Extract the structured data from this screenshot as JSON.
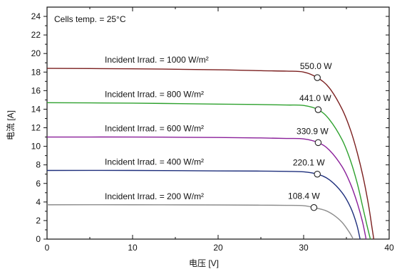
{
  "chart_data": {
    "type": "line",
    "annotation": "Cells temp. = 25°C",
    "xlabel": "电压 [V]",
    "ylabel": "电流 [A]",
    "xlim": [
      0,
      40
    ],
    "ylim": [
      0,
      25
    ],
    "x_ticks": [
      0,
      10,
      20,
      30,
      40
    ],
    "y_ticks": [
      0,
      2,
      4,
      6,
      8,
      10,
      12,
      14,
      16,
      18,
      20,
      22,
      24
    ],
    "x_ticks_labels": [
      "0",
      "10",
      "20",
      "30",
      "40"
    ],
    "y_ticks_labels": [
      "0",
      "2",
      "4",
      "6",
      "8",
      "10",
      "12",
      "14",
      "16",
      "18",
      "20",
      "22",
      "24"
    ],
    "grid": false,
    "series": [
      {
        "name": "Incident Irrad. = 1000 W/m²",
        "color": "#7b1f1f",
        "x": [
          0,
          10,
          20,
          25,
          28,
          30,
          31.6,
          33,
          34.5,
          35.5,
          36.3,
          37,
          37.6,
          38.0,
          38.2
        ],
        "y": [
          18.4,
          18.35,
          18.25,
          18.15,
          18.1,
          18.0,
          17.4,
          16.3,
          14.0,
          11.7,
          9.2,
          6.5,
          3.6,
          1.2,
          0
        ],
        "mpp": {
          "x": 31.6,
          "y": 17.4,
          "label": "550.0 W"
        }
      },
      {
        "name": "Incident Irrad. = 800 W/m²",
        "color": "#2ea12e",
        "x": [
          0,
          10,
          20,
          25,
          28,
          30,
          31.7,
          33,
          34.5,
          35.5,
          36.3,
          36.9,
          37.4,
          37.8
        ],
        "y": [
          14.7,
          14.65,
          14.55,
          14.5,
          14.45,
          14.4,
          13.95,
          12.9,
          10.7,
          8.4,
          5.9,
          3.5,
          1.5,
          0
        ],
        "mpp": {
          "x": 31.7,
          "y": 13.95,
          "label": "441.0  W"
        }
      },
      {
        "name": "Incident Irrad. = 600 W/m²",
        "color": "#8a1f9a",
        "x": [
          0,
          10,
          20,
          25,
          28,
          30,
          31.7,
          33,
          34.5,
          35.5,
          36.3,
          36.9,
          37.3
        ],
        "y": [
          11.0,
          11.0,
          10.95,
          10.9,
          10.85,
          10.8,
          10.4,
          9.6,
          7.8,
          5.9,
          3.8,
          1.8,
          0
        ],
        "mpp": {
          "x": 31.7,
          "y": 10.4,
          "label": "330.9 W"
        }
      },
      {
        "name": "Incident Irrad. = 400 W/m²",
        "color": "#1e2f7c",
        "x": [
          0,
          10,
          20,
          25,
          28,
          30,
          31.6,
          33,
          34.5,
          35.5,
          36.2,
          36.6
        ],
        "y": [
          7.4,
          7.4,
          7.35,
          7.33,
          7.3,
          7.25,
          7.0,
          6.4,
          5.0,
          3.4,
          1.6,
          0
        ],
        "mpp": {
          "x": 31.6,
          "y": 7.0,
          "label": "220.1 W"
        }
      },
      {
        "name": "Incident Irrad. = 200 W/m²",
        "color": "#8c8c8c",
        "x": [
          0,
          10,
          20,
          25,
          28,
          30,
          31.2,
          32.5,
          33.5,
          34.5,
          35.3,
          35.8
        ],
        "y": [
          3.7,
          3.7,
          3.68,
          3.66,
          3.64,
          3.6,
          3.4,
          3.1,
          2.6,
          1.8,
          0.8,
          0
        ],
        "mpp": {
          "x": 31.2,
          "y": 3.4,
          "label": "108.4 W"
        }
      }
    ]
  }
}
